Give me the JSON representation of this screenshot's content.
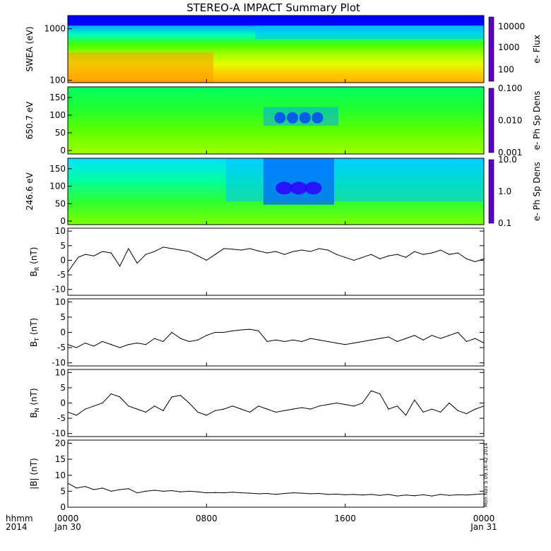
{
  "title": "STEREO-A IMPACT Summary Plot",
  "stamp": "Mon Nov  5 09:16:42 2014",
  "time_axis": {
    "label_line1": "hhmm",
    "label_line2": "2014",
    "ticks": [
      {
        "hour": 0,
        "label": "0000",
        "sub": "Jan 30"
      },
      {
        "hour": 8,
        "label": "0800",
        "sub": ""
      },
      {
        "hour": 16,
        "label": "1600",
        "sub": ""
      },
      {
        "hour": 24,
        "label": "0000",
        "sub": "Jan 31"
      }
    ],
    "range_hours": [
      0,
      24
    ]
  },
  "colors": {
    "rainbow": [
      "#5a00c8",
      "#0000ff",
      "#0080ff",
      "#00e0ff",
      "#00ff80",
      "#40ff00",
      "#c0ff00",
      "#ffff00",
      "#ff9900",
      "#ff0000"
    ],
    "line": "#000000"
  },
  "spectrograms": [
    {
      "id": "swea-flux",
      "ylabel": "SWEA (eV)",
      "cbar_label": "e- Flux",
      "yscale": "log",
      "ylim": [
        90,
        1800
      ],
      "yticks": [
        {
          "v": 100,
          "t": "100"
        },
        {
          "v": 1000,
          "t": "1000"
        }
      ],
      "cbar_ticks": [
        {
          "f": 0.18,
          "t": "100"
        },
        {
          "f": 0.53,
          "t": "1000"
        },
        {
          "f": 0.85,
          "t": "10000"
        }
      ]
    },
    {
      "id": "pad-650",
      "ylabel": "650.7 eV",
      "cbar_label": "e- Ph Sp Dens",
      "yscale": "linear",
      "ylim": [
        -10,
        180
      ],
      "yticks": [
        {
          "v": 0,
          "t": "0"
        },
        {
          "v": 50,
          "t": "50"
        },
        {
          "v": 100,
          "t": "100"
        },
        {
          "v": 150,
          "t": "150"
        }
      ],
      "cbar_ticks": [
        {
          "f": 0.0,
          "t": "0.001"
        },
        {
          "f": 0.5,
          "t": "0.010"
        },
        {
          "f": 1.0,
          "t": "0.100"
        }
      ]
    },
    {
      "id": "pad-246",
      "ylabel": "246.6 eV",
      "cbar_label": "e- Ph Sp Dens",
      "yscale": "linear",
      "ylim": [
        -10,
        180
      ],
      "yticks": [
        {
          "v": 0,
          "t": "0"
        },
        {
          "v": 50,
          "t": "50"
        },
        {
          "v": 100,
          "t": "100"
        },
        {
          "v": 150,
          "t": "150"
        }
      ],
      "cbar_ticks": [
        {
          "f": 0.0,
          "t": "0.1"
        },
        {
          "f": 0.5,
          "t": "1.0"
        },
        {
          "f": 1.0,
          "t": "10.0"
        }
      ]
    }
  ],
  "chart_data": [
    {
      "type": "line",
      "id": "br",
      "ylabel_main": "B",
      "ylabel_sub": "R",
      "ylabel_unit": " (nT)",
      "ylim": [
        -12,
        11
      ],
      "yticks": [
        -10,
        -5,
        0,
        5,
        10
      ],
      "x_hours": [
        0,
        0.3,
        0.6,
        1.0,
        1.5,
        2.0,
        2.5,
        3.0,
        3.5,
        4.0,
        4.5,
        5.0,
        5.5,
        6.0,
        6.5,
        7.0,
        7.5,
        8.0,
        8.5,
        9.0,
        9.5,
        10.0,
        10.5,
        11.0,
        11.5,
        12.0,
        12.5,
        13.0,
        13.5,
        14.0,
        14.5,
        15.0,
        15.5,
        16.0,
        16.5,
        17.0,
        17.5,
        18.0,
        18.5,
        19.0,
        19.5,
        20.0,
        20.5,
        21.0,
        21.5,
        22.0,
        22.5,
        23.0,
        23.5,
        24.0
      ],
      "values": [
        -4,
        -1.5,
        1,
        2,
        1.5,
        3,
        2.5,
        -2,
        4,
        -1,
        2,
        3,
        4.5,
        4,
        3.5,
        3,
        1.5,
        0,
        2,
        4,
        3.8,
        3.5,
        4,
        3.2,
        2.5,
        3,
        2,
        3,
        3.5,
        3,
        4,
        3.5,
        2,
        1,
        0,
        1,
        2,
        0.5,
        1.5,
        2,
        1,
        3,
        2,
        2.5,
        3.5,
        2,
        2.5,
        0.5,
        -0.5,
        0.5
      ]
    },
    {
      "type": "line",
      "id": "bt",
      "ylabel_main": "B",
      "ylabel_sub": "T",
      "ylabel_unit": " (nT)",
      "ylim": [
        -11,
        11
      ],
      "yticks": [
        -10,
        -5,
        0,
        5,
        10
      ],
      "x_hours": [
        0,
        0.5,
        1.0,
        1.5,
        2.0,
        2.5,
        3.0,
        3.5,
        4.0,
        4.5,
        5.0,
        5.5,
        6.0,
        6.5,
        7.0,
        7.5,
        8.0,
        8.5,
        9.0,
        9.5,
        10.0,
        10.5,
        11.0,
        11.5,
        12.0,
        12.5,
        13.0,
        13.5,
        14.0,
        14.5,
        15.0,
        15.5,
        16.0,
        16.5,
        17.0,
        17.5,
        18.0,
        18.5,
        19.0,
        19.5,
        20.0,
        20.5,
        21.0,
        21.5,
        22.0,
        22.5,
        23.0,
        23.5,
        24.0
      ],
      "values": [
        -4,
        -5,
        -3.5,
        -4.5,
        -3,
        -4,
        -5,
        -4,
        -3.5,
        -4,
        -2,
        -3,
        0,
        -2,
        -3,
        -2.5,
        -1,
        0,
        0,
        0.5,
        0.8,
        1,
        0.5,
        -3,
        -2.5,
        -3,
        -2.5,
        -3,
        -2,
        -2.5,
        -3,
        -3.5,
        -4,
        -3.5,
        -3,
        -2.5,
        -2,
        -1.5,
        -3,
        -2,
        -1,
        -2.5,
        -1,
        -2,
        -1,
        0,
        -3,
        -2,
        -3.5
      ]
    },
    {
      "type": "line",
      "id": "bn",
      "ylabel_main": "B",
      "ylabel_sub": "N",
      "ylabel_unit": " (nT)",
      "ylim": [
        -11,
        11
      ],
      "yticks": [
        -10,
        -5,
        0,
        5,
        10
      ],
      "x_hours": [
        0,
        0.5,
        1.0,
        1.5,
        2.0,
        2.5,
        3.0,
        3.5,
        4.0,
        4.5,
        5.0,
        5.5,
        6.0,
        6.5,
        7.0,
        7.5,
        8.0,
        8.5,
        9.0,
        9.5,
        10.0,
        10.5,
        11.0,
        11.5,
        12.0,
        12.5,
        13.0,
        13.5,
        14.0,
        14.5,
        15.0,
        15.5,
        16.0,
        16.5,
        17.0,
        17.5,
        18.0,
        18.5,
        19.0,
        19.5,
        20.0,
        20.5,
        21.0,
        21.5,
        22.0,
        22.5,
        23.0,
        23.5,
        24.0
      ],
      "values": [
        -3,
        -4,
        -2,
        -1,
        0,
        3,
        2,
        -1,
        -2,
        -3,
        -1,
        -2.5,
        2,
        2.5,
        0,
        -3,
        -4,
        -2.5,
        -2,
        -1,
        -2,
        -3,
        -1,
        -2,
        -3,
        -2.5,
        -2,
        -1.5,
        -2,
        -1,
        -0.5,
        0,
        -0.5,
        -1,
        0,
        4,
        3,
        -2,
        -1,
        -4,
        1,
        -3,
        -2,
        -3,
        0,
        -2.5,
        -3.5,
        -2,
        -1
      ]
    },
    {
      "type": "line",
      "id": "bmag",
      "ylabel_main": "|B|",
      "ylabel_sub": "",
      "ylabel_unit": " (nT)",
      "ylim": [
        0,
        21
      ],
      "yticks": [
        0,
        5,
        10,
        15,
        20
      ],
      "x_hours": [
        0,
        0.5,
        1.0,
        1.5,
        2.0,
        2.5,
        3.0,
        3.5,
        4.0,
        4.5,
        5.0,
        5.5,
        6.0,
        6.5,
        7.0,
        7.5,
        8.0,
        8.5,
        9.0,
        9.5,
        10.0,
        10.5,
        11.0,
        11.5,
        12.0,
        12.5,
        13.0,
        13.5,
        14.0,
        14.5,
        15.0,
        15.5,
        16.0,
        16.5,
        17.0,
        17.5,
        18.0,
        18.5,
        19.0,
        19.5,
        20.0,
        20.5,
        21.0,
        21.5,
        22.0,
        22.5,
        23.0,
        23.5,
        24.0
      ],
      "values": [
        7.5,
        6,
        6.5,
        5.5,
        6,
        5,
        5.5,
        5.8,
        4.5,
        5,
        5.3,
        5,
        5.2,
        4.8,
        5,
        4.8,
        4.5,
        4.6,
        4.5,
        4.7,
        4.5,
        4.4,
        4.2,
        4.3,
        4,
        4.3,
        4.5,
        4.4,
        4.2,
        4.3,
        4,
        4.1,
        3.9,
        4,
        3.8,
        4,
        3.7,
        4,
        3.5,
        3.8,
        3.6,
        3.9,
        3.5,
        4,
        3.7,
        3.9,
        3.8,
        4,
        4.2
      ]
    }
  ]
}
